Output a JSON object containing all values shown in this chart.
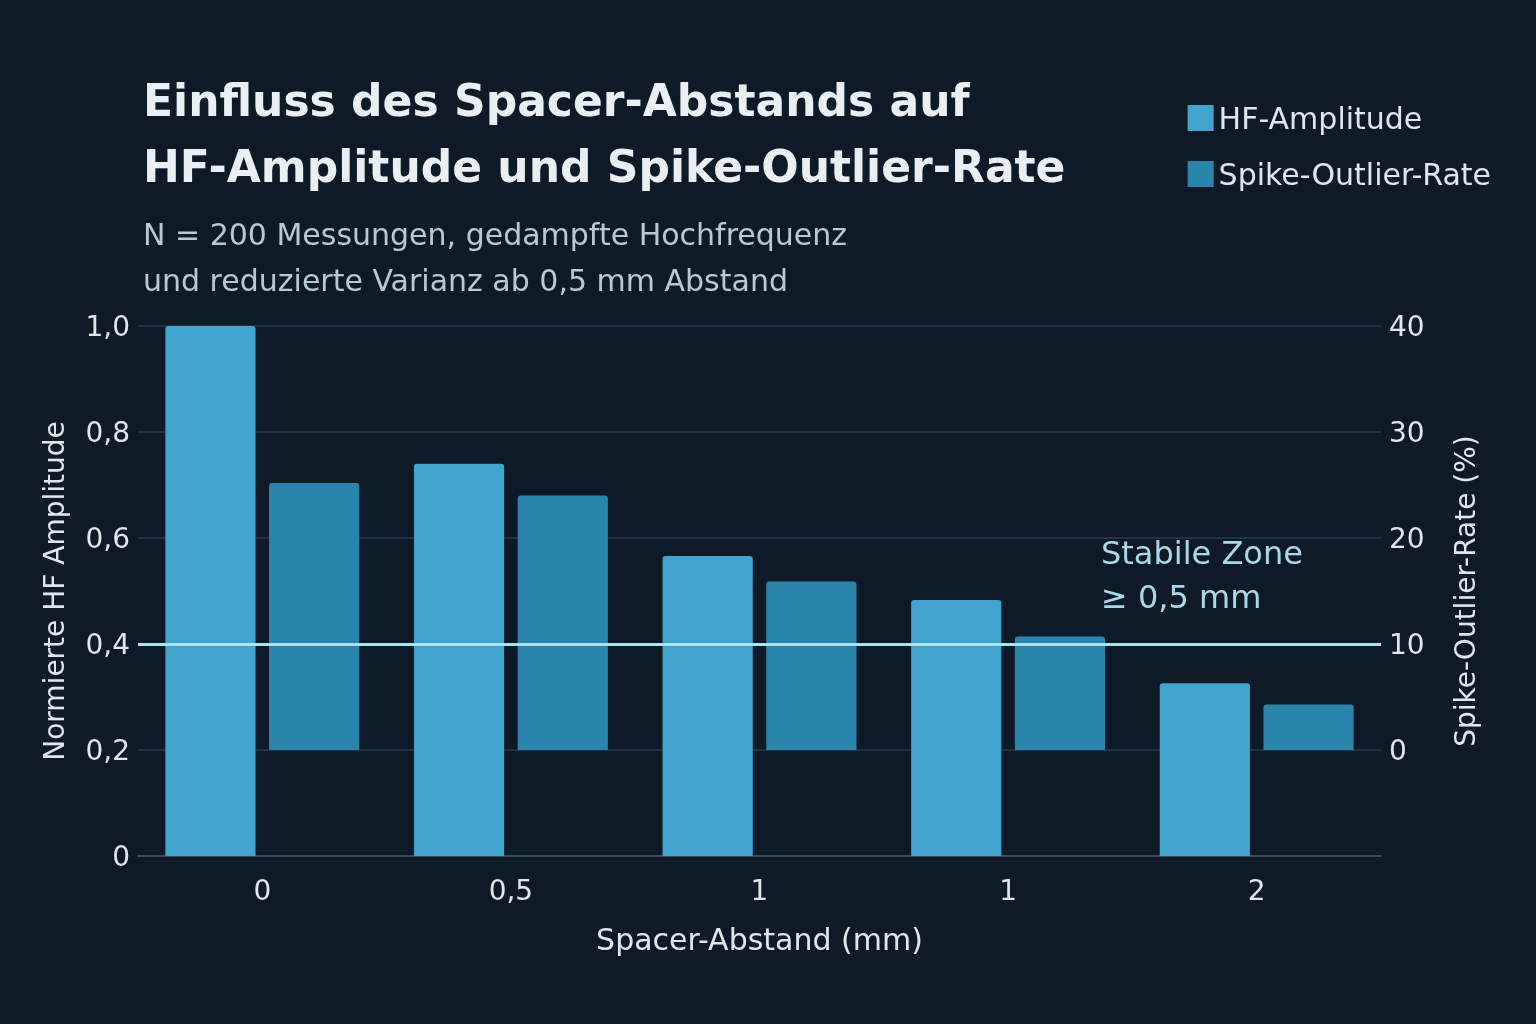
{
  "chart_data": {
    "type": "bar",
    "title": "Einfluss des Spacer-Abstands auf\nHF-Amplitude und Spike-Outlier-Rate",
    "subtitle": "N = 200 Messungen, gedampfte Hochfrequenz\nund reduzierte Varianz ab 0,5 mm Abstand",
    "xlabel": "Spacer-Abstand (mm)",
    "ylabel": "Normierte HF Amplitude",
    "y2label": "Spike-Outlier-Rate (%)",
    "categories": [
      "0",
      "0,5",
      "1",
      "1",
      "2"
    ],
    "series": [
      {
        "name": "HF-Amplitude",
        "color": "#40a4cc",
        "values": [
          1.0,
          0.74,
          0.566,
          0.483,
          0.326
        ]
      },
      {
        "name": "Spike-Outlier-Rate",
        "color": "#2a85ad",
        "axis": "y2",
        "values": [
          25.2,
          24.0,
          15.9,
          10.7,
          4.3
        ]
      }
    ],
    "ylim": [
      0,
      1
    ],
    "yticks": [
      0,
      {
        "value": 0.2,
        "label": "0,2"
      },
      {
        "value": 0.4,
        "label": "0,4"
      },
      {
        "value": 0.6,
        "label": "0,6"
      },
      {
        "value": 0.8,
        "label": "0,8"
      },
      {
        "value": 1,
        "label": "1,0"
      }
    ],
    "y2lim": [
      -10,
      40
    ],
    "y2ticks": [
      0,
      10,
      20,
      30,
      40
    ],
    "ref_lines": [
      {
        "axis": "y2",
        "value": 10,
        "label": "Stabile Zone\n≥ 0,5 mm",
        "color": "#a8e4ee"
      }
    ],
    "grid": "y",
    "legend": "top right"
  }
}
